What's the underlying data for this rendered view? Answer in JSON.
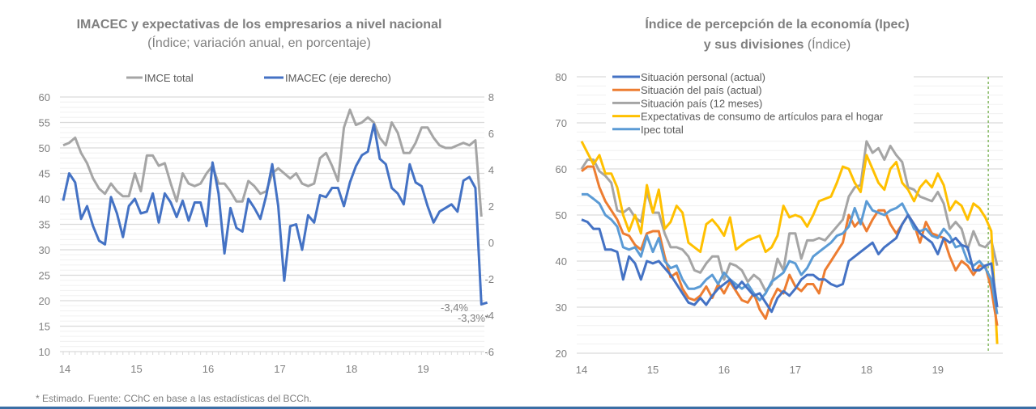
{
  "footnote": "* Estimado. Fuente: CChC en base a las estadísticas del BCCh.",
  "colors": {
    "imce": "#a5a5a5",
    "imacec": "#4472c4",
    "personal": "#4472c4",
    "pais": "#ed7d31",
    "pais12": "#a5a5a5",
    "consumo": "#ffc000",
    "ipec": "#5b9bd5",
    "marker": "#70ad47",
    "grid": "#d9d9d9"
  },
  "chart_data": [
    {
      "type": "line",
      "title": "IMACEC y expectativas de los empresarios a nivel nacional",
      "subtitle": "(Índice; variación anual, en porcentaje)",
      "xlabel": "",
      "x_tick_labels": [
        "14",
        "15",
        "16",
        "17",
        "18",
        "19"
      ],
      "x_start": "2014-01",
      "frequency": "monthly",
      "ylim": [
        10,
        60
      ],
      "y_ticks": [
        10,
        15,
        20,
        25,
        30,
        35,
        40,
        45,
        50,
        55,
        60
      ],
      "y2lim": [
        -6,
        8
      ],
      "y2_ticks": [
        -6,
        -4,
        -2,
        0,
        2,
        4,
        6,
        8
      ],
      "grid": true,
      "legend_position": "top",
      "series": [
        {
          "name": "IMCE total",
          "axis": "left",
          "values": [
            50.5,
            51,
            52,
            49,
            47,
            44,
            42,
            41,
            43,
            41.5,
            40.5,
            40.5,
            45,
            41.5,
            48.5,
            48.5,
            46.5,
            47,
            43,
            39.5,
            45,
            43,
            42.5,
            43,
            45,
            46.5,
            43,
            43,
            41.5,
            39.5,
            39.5,
            43.5,
            42.5,
            41,
            41.5,
            45,
            46,
            45,
            44,
            45,
            43,
            42.5,
            43,
            48,
            49,
            46.5,
            43.5,
            54,
            57.5,
            54.5,
            55,
            56,
            55,
            52,
            50.5,
            55,
            53,
            49,
            49,
            51,
            54,
            54,
            52,
            50.5,
            50,
            50,
            50.5,
            51,
            50.5,
            51.5,
            36.5
          ]
        },
        {
          "name": "IMACEC (eje derecho)",
          "axis": "right",
          "values": [
            2.3,
            3.8,
            3.3,
            1.3,
            2.0,
            0.9,
            0.1,
            -0.1,
            2.5,
            1.6,
            0.3,
            2.0,
            2.4,
            1.6,
            1.7,
            2.7,
            1.1,
            2.7,
            2.2,
            1.4,
            2.3,
            1.2,
            2.2,
            2.2,
            0.9,
            4.4,
            2.7,
            -0.6,
            1.9,
            0.8,
            0.6,
            2.4,
            1.9,
            1.3,
            2.6,
            4.3,
            2.0,
            -2.1,
            0.9,
            1.0,
            -0.4,
            1.5,
            1.1,
            2.6,
            2.5,
            3.0,
            3.0,
            2.0,
            3.3,
            4.2,
            4.8,
            5.0,
            6.5,
            4.6,
            4.3,
            3.0,
            2.7,
            2.1,
            4.3,
            3.3,
            3.1,
            2.0,
            1.1,
            1.7,
            1.9,
            2.1,
            1.7,
            3.4,
            3.6,
            3.0,
            -3.4,
            -3.3
          ]
        }
      ],
      "annotations": [
        "-3,4%",
        "-3,3%*"
      ]
    },
    {
      "type": "line",
      "title": "Índice de percepción de la economía (Ipec)",
      "title_line2_bold": "y sus divisiones",
      "title_line2_normal": "(Índice)",
      "x_tick_labels": [
        "14",
        "15",
        "16",
        "17",
        "18",
        "19"
      ],
      "x_start": "2014-01",
      "frequency": "monthly",
      "ylim": [
        20,
        80
      ],
      "y_ticks": [
        20,
        30,
        40,
        50,
        60,
        70,
        80
      ],
      "grid": true,
      "legend_position": "top-left",
      "vertical_marker": "2019-10",
      "series": [
        {
          "name": "Situación personal (actual)",
          "key": "personal",
          "values": [
            49,
            48.5,
            47,
            47,
            42.5,
            42.5,
            42,
            36,
            41,
            39.5,
            36,
            40,
            39.5,
            40,
            38.5,
            37,
            35,
            33,
            31,
            30.5,
            32,
            30.5,
            32.5,
            34,
            35,
            36,
            34,
            35.5,
            34,
            32.5,
            33,
            31,
            29,
            32,
            33.5,
            32.5,
            34,
            36,
            37,
            37,
            36,
            36,
            35,
            34.5,
            35,
            40,
            41,
            42,
            43,
            44,
            41.5,
            43,
            44,
            45,
            48,
            50,
            48,
            46,
            45,
            44,
            41.5,
            45,
            44,
            45,
            43.5,
            43,
            38,
            38,
            39,
            39.5,
            30
          ]
        },
        {
          "name": "Situación del país (actual)",
          "key": "pais",
          "values": [
            59.5,
            60.5,
            60.5,
            56,
            53,
            51,
            49,
            46,
            45.5,
            43.5,
            42.5,
            46,
            46.5,
            46.5,
            41,
            36.5,
            37.5,
            34,
            32,
            31.5,
            32.5,
            34.5,
            32,
            35,
            33,
            35.5,
            33.5,
            31.5,
            31,
            33,
            29.5,
            27.5,
            31.5,
            34,
            33,
            37,
            34.5,
            33.5,
            35,
            35,
            33,
            38,
            40,
            42,
            44,
            50,
            47.5,
            49,
            46.5,
            49,
            51,
            51,
            48,
            46,
            48,
            50,
            48,
            44,
            48.5,
            46,
            45.5,
            45,
            41,
            38,
            40,
            39,
            37,
            39,
            39,
            34,
            26
          ]
        },
        {
          "name": "Situación país (12 meses)",
          "key": "pais12",
          "values": [
            60,
            62,
            62,
            59.5,
            58.5,
            57,
            51,
            50.5,
            51.5,
            49.5,
            48.5,
            55,
            50.5,
            50.5,
            46,
            43,
            43,
            42.5,
            41,
            38,
            37.5,
            39.5,
            41,
            41,
            36,
            39.5,
            39,
            38,
            35.5,
            37,
            36,
            33.5,
            35,
            40.5,
            38,
            46,
            46,
            40.5,
            44.5,
            44.5,
            45,
            44.5,
            46,
            47.5,
            49,
            54,
            56,
            56.5,
            66,
            63.5,
            64.5,
            62,
            65,
            63,
            61.5,
            56,
            55.5,
            54,
            53.5,
            53,
            55,
            52.5,
            47,
            48.5,
            47,
            42.5,
            46.5,
            43.5,
            43,
            44.5,
            39
          ]
        },
        {
          "name": "Expectativas de consumo de artículos para el hogar",
          "key": "consumo",
          "values": [
            66,
            63.5,
            61,
            63,
            59,
            59,
            56,
            50,
            46.5,
            50,
            46,
            56.5,
            50.5,
            55.5,
            47,
            48.5,
            52,
            50.5,
            44,
            43,
            42,
            48,
            49,
            47.5,
            45.5,
            49.5,
            42.5,
            43.5,
            44.5,
            45,
            45.5,
            42,
            43,
            45.5,
            52,
            49.5,
            50,
            49.5,
            47.5,
            50,
            53,
            53.5,
            54,
            57,
            60.5,
            60,
            57,
            55,
            63,
            60,
            57,
            55.5,
            60,
            61.5,
            57,
            55.5,
            53,
            56,
            57.5,
            56,
            59,
            56.5,
            51,
            53,
            52,
            49,
            52.5,
            51.5,
            49.5,
            46.5,
            22
          ]
        },
        {
          "name": "Ipec total",
          "key": "ipec",
          "values": [
            54.5,
            54.5,
            53.5,
            52.5,
            50,
            49,
            47.5,
            43,
            42.5,
            43,
            41,
            45.5,
            42,
            45,
            40,
            38.5,
            39,
            36,
            34,
            34,
            34.5,
            36,
            37,
            35,
            37.5,
            36,
            35,
            34,
            35,
            33,
            31.5,
            33,
            35.5,
            36.5,
            37.5,
            40,
            39.5,
            37,
            38.5,
            41,
            42,
            43,
            44,
            45.5,
            46,
            47.5,
            51.5,
            48,
            53,
            51,
            50.5,
            50,
            51,
            51.5,
            52.5,
            50,
            47,
            46.5,
            47,
            45.5,
            45,
            47,
            45.5,
            43,
            43.5,
            40,
            39,
            40,
            38.5,
            36,
            28.5
          ]
        }
      ]
    }
  ]
}
